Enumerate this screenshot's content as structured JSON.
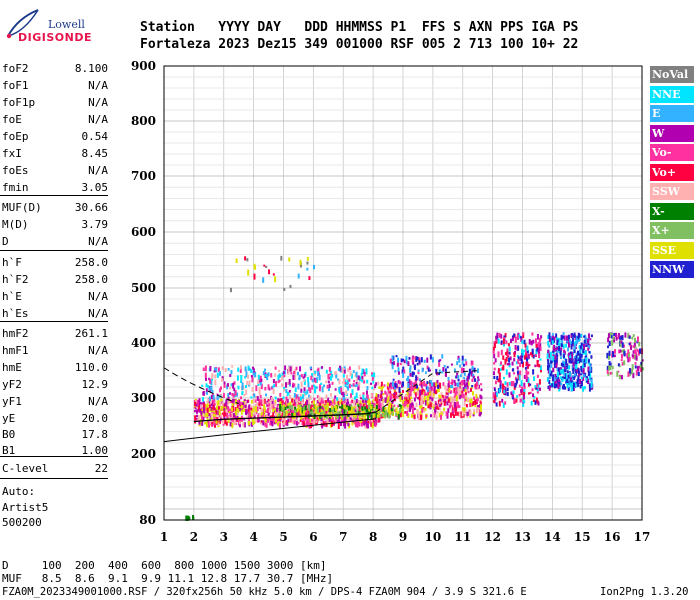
{
  "logo": {
    "line1": "Lowell",
    "line2": "DIGISONDE"
  },
  "header": {
    "labels": {
      "station": "Station",
      "date": "YYYY DAY",
      "doy": "DDD",
      "time": "HHMMSS",
      "p1": "P1",
      "ffs": "FFS",
      "s": "S",
      "axn": "AXN",
      "pps": "PPS",
      "iga": "IGA",
      "ps": "PS"
    },
    "values": {
      "station": "Fortaleza",
      "date": "2023 Dez15",
      "doy": "349",
      "time": "001000",
      "p1": "RSF",
      "ffs": "005",
      "s": "2",
      "axn": "713",
      "pps": "100",
      "iga": "10+",
      "ps": "22"
    }
  },
  "params": [
    {
      "name": "foF2",
      "value": "8.100"
    },
    {
      "name": "foF1",
      "value": "N/A"
    },
    {
      "name": "foF1p",
      "value": "N/A"
    },
    {
      "name": "foE",
      "value": "N/A"
    },
    {
      "name": "foEp",
      "value": "0.54"
    },
    {
      "name": "fxI",
      "value": "8.45"
    },
    {
      "name": "foEs",
      "value": "N/A"
    },
    {
      "name": "fmin",
      "value": "3.05"
    },
    {
      "name": "MUF(D)",
      "value": "30.66"
    },
    {
      "name": "M(D)",
      "value": "3.79"
    },
    {
      "name": "D",
      "value": "N/A"
    },
    {
      "name": "h`F",
      "value": "258.0"
    },
    {
      "name": "h`F2",
      "value": "258.0"
    },
    {
      "name": "h`E",
      "value": "N/A"
    },
    {
      "name": "h`Es",
      "value": "N/A"
    },
    {
      "name": "hmF2",
      "value": "261.1"
    },
    {
      "name": "hmF1",
      "value": "N/A"
    },
    {
      "name": "hmE",
      "value": "110.0"
    },
    {
      "name": "yF2",
      "value": "12.9"
    },
    {
      "name": "yF1",
      "value": "N/A"
    },
    {
      "name": "yE",
      "value": "20.0"
    },
    {
      "name": "B0",
      "value": "17.8"
    },
    {
      "name": "B1",
      "value": "1.00"
    },
    {
      "name": "C-level",
      "value": "22"
    }
  ],
  "status": {
    "auto_label": "Auto:",
    "artist": "Artist5",
    "version": "500200"
  },
  "legend": [
    {
      "label": "NoVal",
      "color": "#808080"
    },
    {
      "label": "NNE",
      "color": "#00e5ff"
    },
    {
      "label": "E",
      "color": "#33b2ff"
    },
    {
      "label": "W",
      "color": "#b000b0"
    },
    {
      "label": "Vo-",
      "color": "#ff30a0"
    },
    {
      "label": "Vo+",
      "color": "#ff0040"
    },
    {
      "label": "SSW",
      "color": "#ffb0b0"
    },
    {
      "label": "X-",
      "color": "#008000"
    },
    {
      "label": "X+",
      "color": "#80c060"
    },
    {
      "label": "SSE",
      "color": "#e0e000"
    },
    {
      "label": "NNW",
      "color": "#2020d0"
    }
  ],
  "chart_data": {
    "type": "scatter",
    "x_ticks": [
      "1",
      "2",
      "3",
      "4",
      "5",
      "6",
      "7",
      "8",
      "9",
      "10",
      "11",
      "12",
      "13",
      "14",
      "15",
      "16",
      "17"
    ],
    "y_ticks": [
      "80",
      "200",
      "300",
      "400",
      "500",
      "600",
      "700",
      "800",
      "900"
    ],
    "xlim": [
      1,
      17
    ],
    "y_axis": "reciprocal",
    "grid": true,
    "profile": {
      "x": [
        2.0,
        3.0,
        4.0,
        5.0,
        6.0,
        7.0,
        7.8,
        8.1
      ],
      "y": [
        258,
        262,
        264,
        266,
        268,
        270,
        272,
        275
      ]
    }
  },
  "footer": {
    "d_label": "D",
    "d_values": "100  200  400  600  800 1000 1500 3000 [km]",
    "muf_label": "MUF",
    "muf_values": "8.5  8.6  9.1  9.9 11.1 12.8 17.7 30.7 [MHz]",
    "file_line": "FZA0M_2023349001000.RSF / 320fx256h 50 kHz 5.0 km / DPS-4 FZA0M 904 / 3.9 S 321.6 E",
    "program": "Ion2Png 1.3.20"
  }
}
